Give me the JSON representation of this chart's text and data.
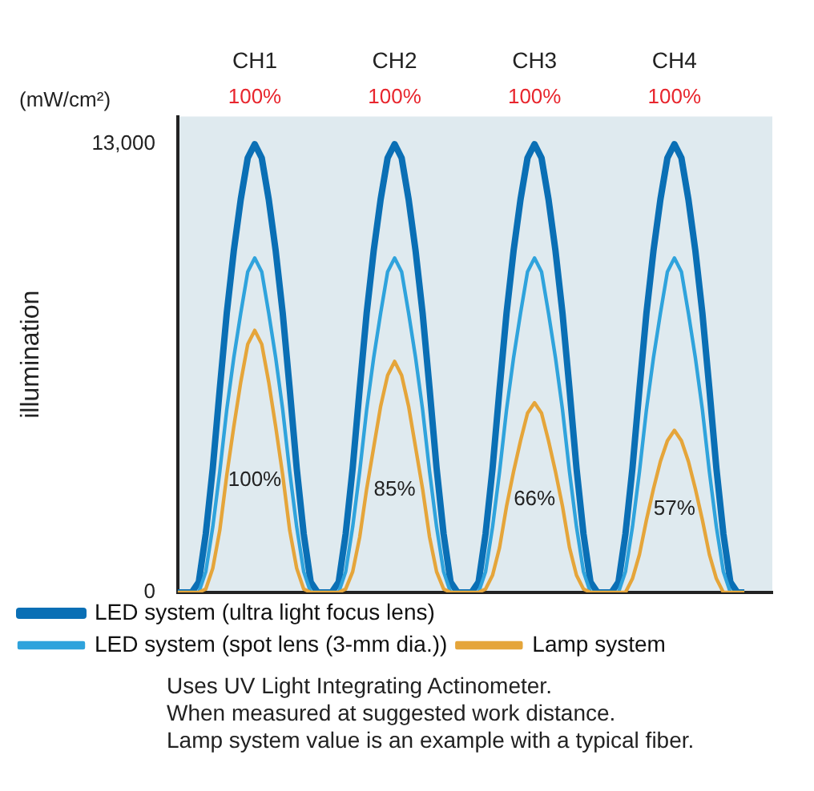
{
  "chart_data": {
    "type": "line",
    "ylabel": "illumination",
    "ylim": [
      0,
      13800
    ],
    "yticks": [
      0,
      {
        "value": 13000,
        "label": "13,000"
      }
    ],
    "categories": [
      null,
      null,
      null,
      null,
      null,
      null,
      null,
      null,
      null,
      null,
      null,
      "CH1",
      null,
      null,
      null,
      null,
      null,
      null,
      null,
      null,
      null,
      null,
      null,
      null,
      null,
      null,
      null,
      null,
      null,
      null,
      null,
      "CH2",
      null,
      null,
      null,
      null,
      null,
      null,
      null,
      null,
      null,
      null,
      null,
      null,
      null,
      null,
      null,
      null,
      null,
      null,
      null,
      "CH3",
      null,
      null,
      null,
      null,
      null,
      null,
      null,
      null,
      null,
      null,
      null,
      null,
      null,
      null,
      null,
      null,
      null,
      null,
      null,
      "CH4",
      null,
      null,
      null,
      null,
      null,
      null,
      null,
      null,
      null,
      null,
      null,
      null,
      null,
      null
    ],
    "grid": false,
    "legend": "bottom",
    "marker": "none",
    "line_style": "solid",
    "series": [
      {
        "name": "LED system (ultra light focus lens)",
        "color": "#0a6fb5",
        "values": [
          0,
          0,
          0,
          300,
          1700,
          3600,
          5900,
          8100,
          9900,
          11400,
          12600,
          13000,
          12600,
          11400,
          9900,
          8100,
          5900,
          3600,
          1700,
          300,
          0,
          0,
          0,
          300,
          1700,
          3600,
          5900,
          8100,
          9900,
          11400,
          12600,
          13000,
          12600,
          11400,
          9900,
          8100,
          5900,
          3600,
          1700,
          300,
          0,
          0,
          0,
          300,
          1700,
          3600,
          5900,
          8100,
          9900,
          11400,
          12600,
          13000,
          12600,
          11400,
          9900,
          8100,
          5900,
          3600,
          1700,
          300,
          0,
          0,
          0,
          300,
          1700,
          3600,
          5900,
          8100,
          9900,
          11400,
          12600,
          13000,
          12600,
          11400,
          9900,
          8100,
          5900,
          3600,
          1700,
          300,
          0,
          0,
          null,
          null,
          null,
          null
        ]
      },
      {
        "name": "LED system (spot lens (3-mm dia.))",
        "color": "#2fa3dc",
        "values": [
          0,
          0,
          0,
          0,
          600,
          1900,
          3500,
          5300,
          6800,
          8100,
          9300,
          9700,
          9300,
          8100,
          6800,
          5300,
          3500,
          1900,
          600,
          0,
          0,
          0,
          0,
          0,
          600,
          1900,
          3500,
          5300,
          6800,
          8100,
          9300,
          9700,
          9300,
          8100,
          6800,
          5300,
          3500,
          1900,
          600,
          0,
          0,
          0,
          0,
          0,
          600,
          1900,
          3500,
          5300,
          6800,
          8100,
          9300,
          9700,
          9300,
          8100,
          6800,
          5300,
          3500,
          1900,
          600,
          0,
          0,
          0,
          0,
          0,
          600,
          1900,
          3500,
          5300,
          6800,
          8100,
          9300,
          9700,
          9300,
          8100,
          6800,
          5300,
          3500,
          1900,
          600,
          0,
          0,
          0,
          null,
          null,
          null,
          null
        ]
      },
      {
        "name": "Lamp system",
        "color": "#e5a53a",
        "values": [
          0,
          0,
          0,
          0,
          100,
          700,
          1800,
          3400,
          4800,
          6100,
          7200,
          7600,
          7200,
          6100,
          4800,
          3400,
          1800,
          700,
          100,
          0,
          0,
          0,
          0,
          0,
          100,
          600,
          1600,
          3000,
          4200,
          5400,
          6300,
          6700,
          6300,
          5400,
          4200,
          3000,
          1600,
          600,
          100,
          0,
          0,
          0,
          0,
          0,
          100,
          500,
          1300,
          2500,
          3500,
          4400,
          5200,
          5500,
          5200,
          4400,
          3500,
          2500,
          1300,
          500,
          100,
          0,
          0,
          0,
          0,
          0,
          0,
          400,
          1100,
          2100,
          3000,
          3800,
          4400,
          4700,
          4400,
          3800,
          3000,
          2100,
          1100,
          400,
          0,
          0,
          0,
          0,
          null,
          null,
          null,
          null
        ]
      }
    ],
    "annotations": [
      "(mW/cm²)",
      "100%",
      "100%",
      "100%",
      "100%",
      "100%",
      "85%",
      "66%",
      "57%",
      "Uses UV Light Integrating Actinometer.",
      "When measured at suggested work distance.",
      "Lamp system value is an example with a typical fiber."
    ]
  }
}
